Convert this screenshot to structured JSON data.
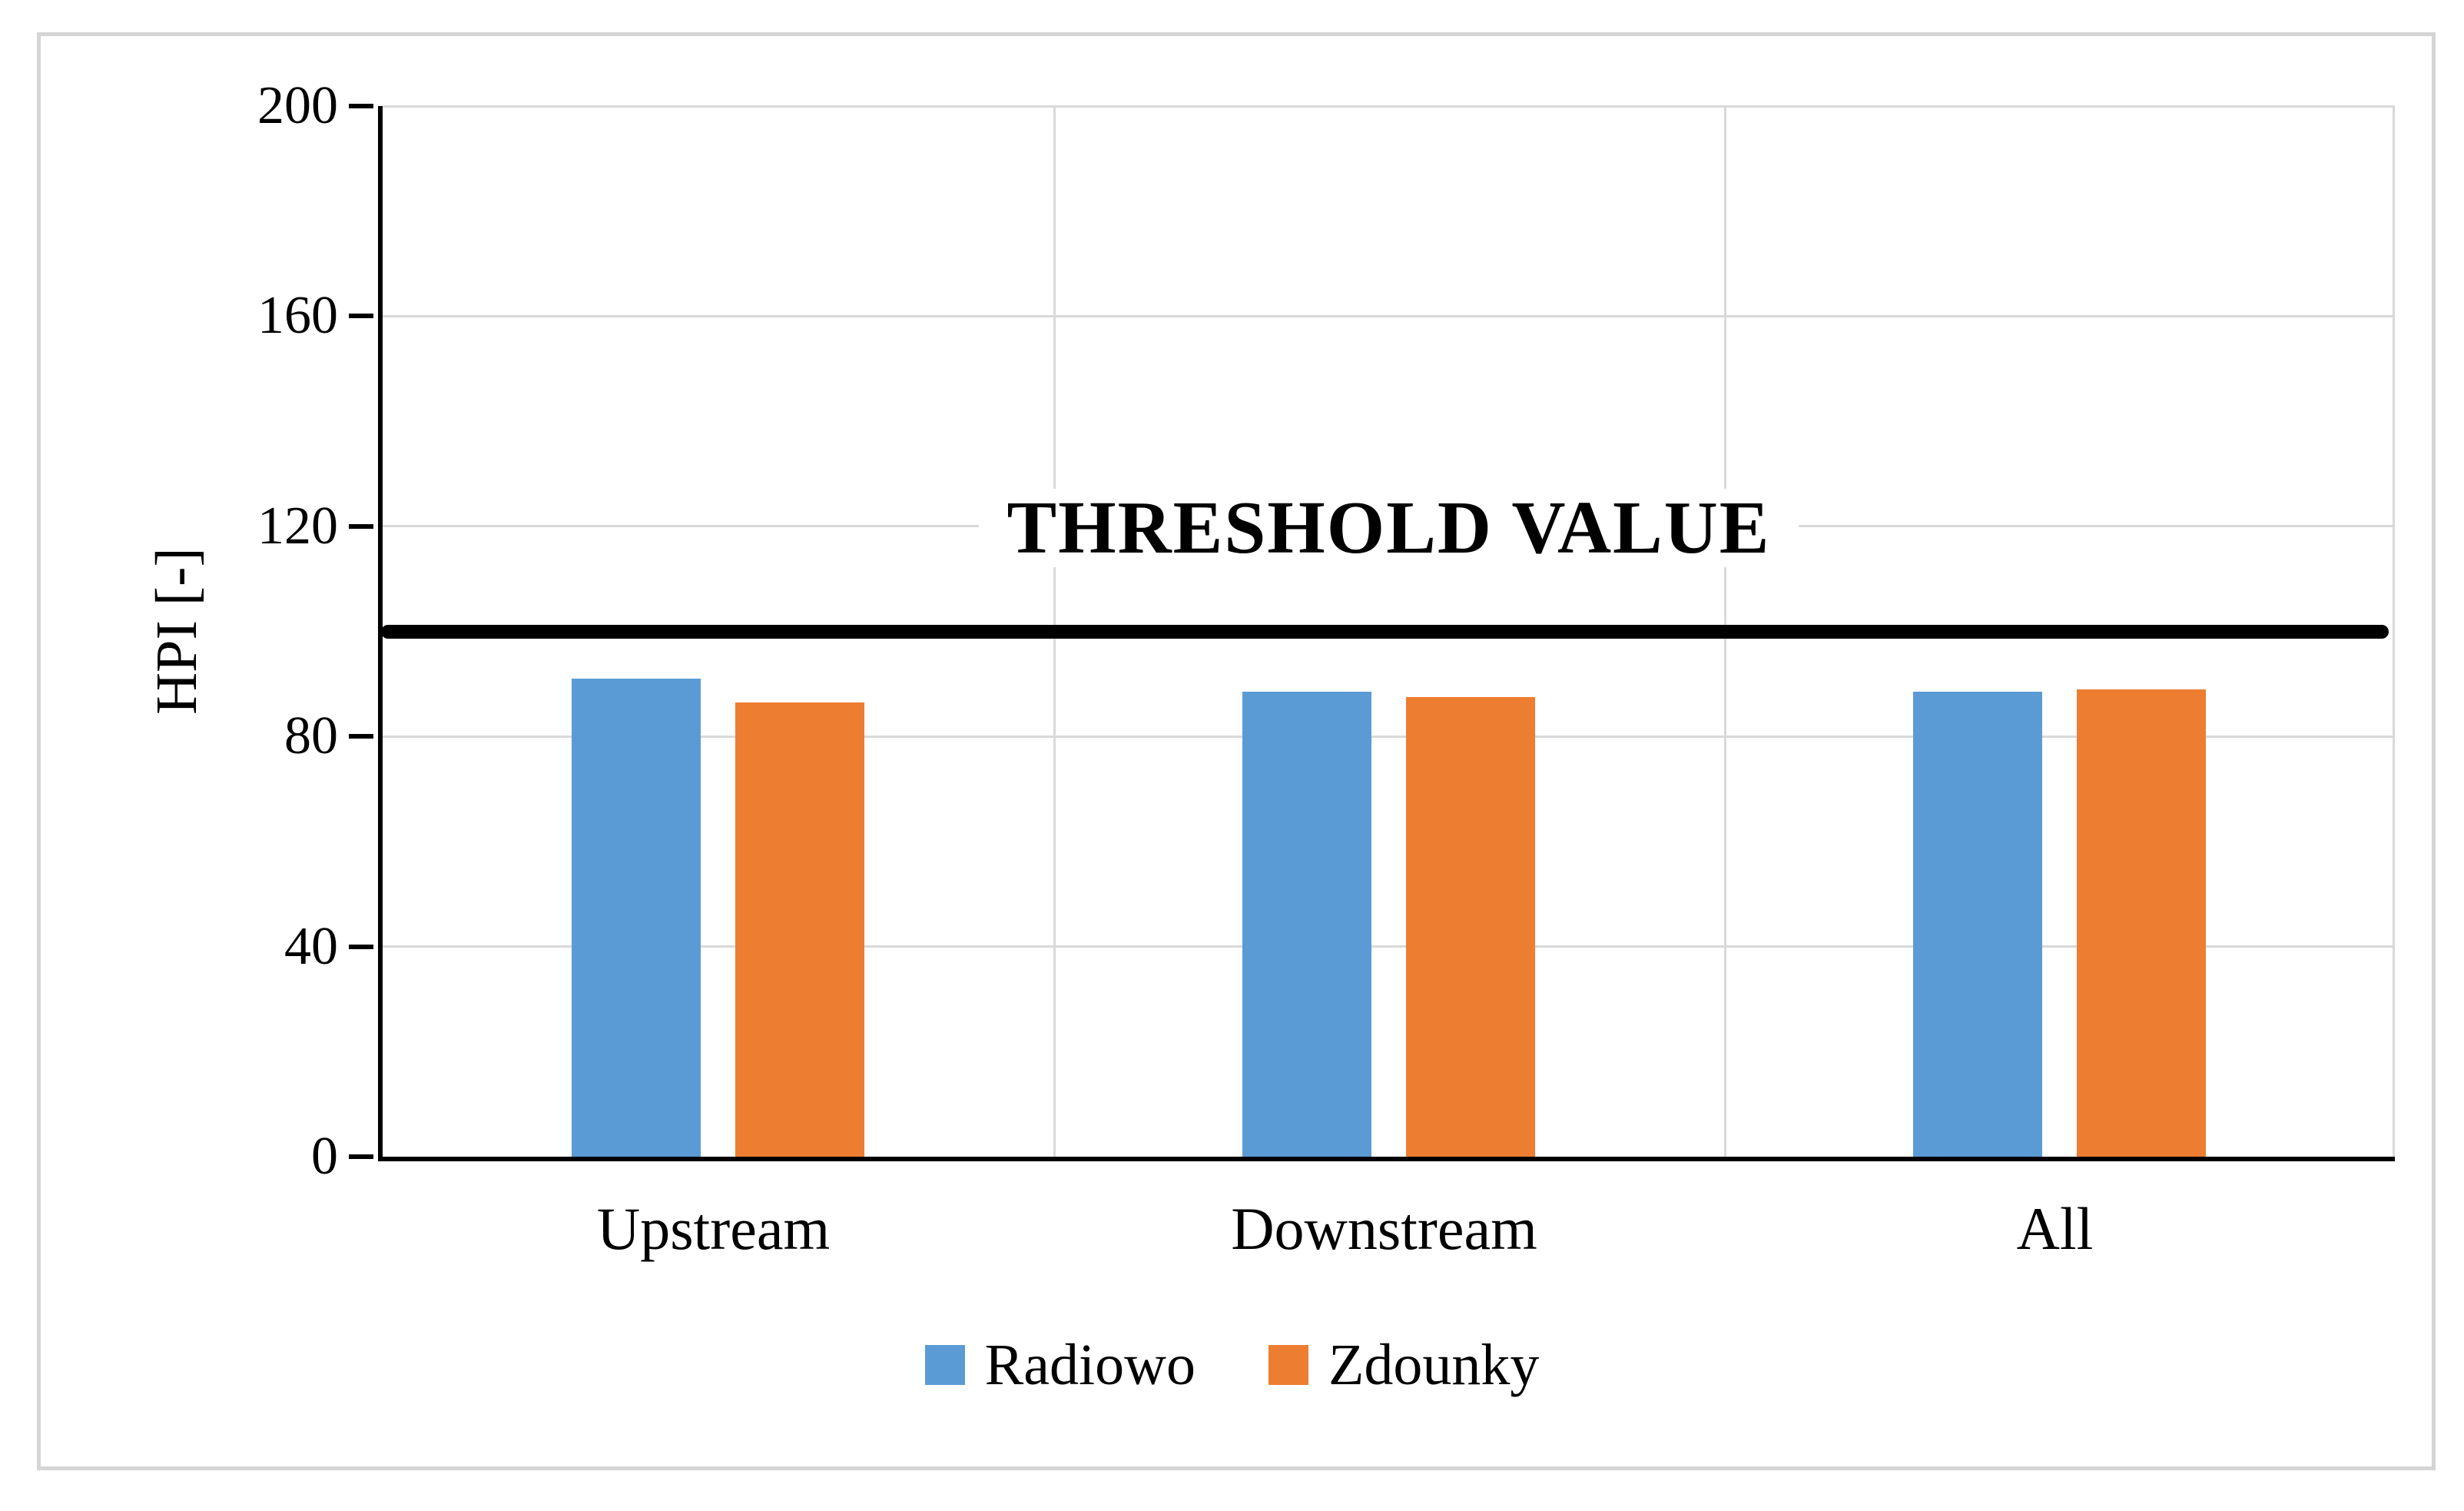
{
  "figure": {
    "background": "#ffffff",
    "border_color": "#d5d5d5"
  },
  "chart_data": {
    "type": "bar",
    "categories": [
      "Upstream",
      "Downstream",
      "All"
    ],
    "series": [
      {
        "name": "Radiowo",
        "color": "#5B9BD5",
        "values": [
          91,
          88.5,
          88.5
        ]
      },
      {
        "name": "Zdounky",
        "color": "#ED7D31",
        "values": [
          86.5,
          87.5,
          89
        ]
      }
    ],
    "title": "",
    "xlabel": "",
    "ylabel": "HPI [-]",
    "ylim": [
      0,
      200
    ],
    "yticks": [
      0,
      40,
      80,
      120,
      160,
      200
    ],
    "grid": true,
    "gridline_color": "#d9d9d9",
    "axis_color": "#000000",
    "legend_position": "bottom-center",
    "threshold": {
      "value": 100,
      "label": "THRESHOLD VALUE",
      "color": "#000000"
    }
  }
}
